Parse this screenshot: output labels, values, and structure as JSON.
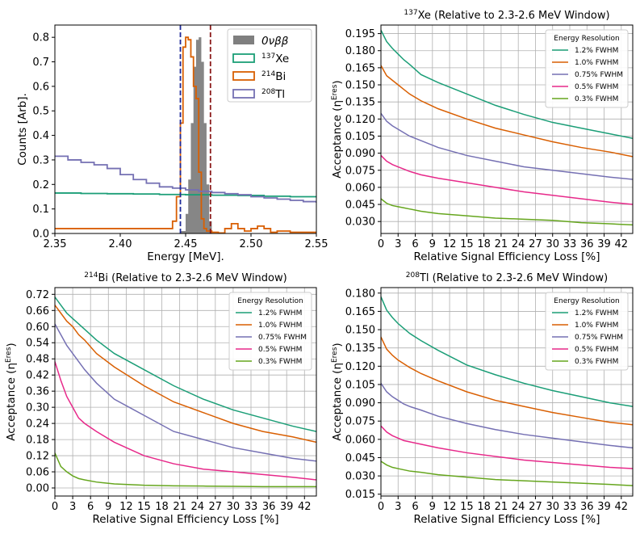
{
  "chart_data": [
    {
      "type": "step",
      "title": "",
      "xlabel": "Energy [MeV].",
      "ylabel": "Counts [Arb].",
      "xlim": [
        2.35,
        2.55
      ],
      "ylim": [
        0,
        0.85
      ],
      "xticks": [
        2.35,
        2.4,
        2.45,
        2.5,
        2.55
      ],
      "xtick_labels": [
        "2.35",
        "2.40",
        "2.45",
        "2.50",
        "2.55"
      ],
      "yticks": [
        0,
        0.1,
        0.2,
        0.3,
        0.4,
        0.5,
        0.6,
        0.7,
        0.8
      ],
      "ytick_labels": [
        "0.0",
        "0.1",
        "0.2",
        "0.3",
        "0.4",
        "0.5",
        "0.6",
        "0.7",
        "0.8"
      ],
      "grid": false,
      "legend_position": "top-right",
      "vlines": [
        {
          "x": 2.446,
          "color": "#1f2a99",
          "style": "dashed"
        },
        {
          "x": 2.469,
          "color": "#8b1a1a",
          "style": "dashed"
        }
      ],
      "series": [
        {
          "name": "0νββ",
          "sup": "",
          "kind": "filled",
          "color": "#7f7f7f",
          "x": [
            2.446,
            2.45,
            2.452,
            2.454,
            2.456,
            2.458,
            2.46,
            2.462,
            2.464,
            2.466,
            2.468,
            2.47
          ],
          "y": [
            0.01,
            0.08,
            0.22,
            0.45,
            0.68,
            0.79,
            0.8,
            0.7,
            0.45,
            0.2,
            0.05,
            0.0
          ]
        },
        {
          "name": "Xe",
          "sup": "137",
          "kind": "line",
          "color": "#1b9e77",
          "x": [
            2.35,
            2.37,
            2.39,
            2.41,
            2.43,
            2.45,
            2.47,
            2.49,
            2.51,
            2.53,
            2.55
          ],
          "y": [
            0.165,
            0.163,
            0.162,
            0.161,
            0.159,
            0.158,
            0.156,
            0.155,
            0.152,
            0.15,
            0.147
          ]
        },
        {
          "name": "Bi",
          "sup": "214",
          "kind": "line",
          "color": "#d95f02",
          "x": [
            2.35,
            2.38,
            2.41,
            2.435,
            2.44,
            2.443,
            2.446,
            2.448,
            2.45,
            2.452,
            2.454,
            2.456,
            2.458,
            2.46,
            2.462,
            2.464,
            2.466,
            2.47,
            2.475,
            2.48,
            2.485,
            2.49,
            2.495,
            2.5,
            2.505,
            2.51,
            2.515,
            2.52,
            2.53,
            2.54,
            2.55
          ],
          "y": [
            0.02,
            0.02,
            0.02,
            0.02,
            0.05,
            0.15,
            0.45,
            0.76,
            0.8,
            0.79,
            0.72,
            0.6,
            0.55,
            0.25,
            0.06,
            0.02,
            0.01,
            0.005,
            0.002,
            0.02,
            0.04,
            0.02,
            0.01,
            0.02,
            0.03,
            0.02,
            0.005,
            0.01,
            0.005,
            0.005,
            0.005
          ]
        },
        {
          "name": "Tl",
          "sup": "208",
          "kind": "line",
          "color": "#7570b3",
          "x": [
            2.35,
            2.36,
            2.37,
            2.38,
            2.39,
            2.4,
            2.41,
            2.42,
            2.43,
            2.44,
            2.45,
            2.46,
            2.47,
            2.48,
            2.49,
            2.5,
            2.51,
            2.52,
            2.53,
            2.54,
            2.55
          ],
          "y": [
            0.315,
            0.3,
            0.29,
            0.28,
            0.265,
            0.24,
            0.22,
            0.205,
            0.19,
            0.185,
            0.178,
            0.172,
            0.167,
            0.162,
            0.158,
            0.15,
            0.145,
            0.14,
            0.135,
            0.13,
            0.125
          ]
        }
      ]
    },
    {
      "type": "line",
      "title": "Xe (Relative to 2.3-2.6 MeV Window)",
      "title_sup": "137",
      "xlabel": "Relative Signal Efficiency Loss [%]",
      "ylabel": "Acceptance (η",
      "ylabel_sup": "Eres",
      "xlim": [
        0,
        44
      ],
      "ylim": [
        0.0195,
        0.2025
      ],
      "xticks": [
        0,
        3,
        6,
        9,
        12,
        15,
        18,
        21,
        24,
        27,
        30,
        33,
        36,
        39,
        42
      ],
      "xtick_labels": [
        "0",
        "3",
        "6",
        "9",
        "12",
        "15",
        "18",
        "21",
        "24",
        "27",
        "30",
        "33",
        "36",
        "39",
        "42"
      ],
      "yticks": [
        0.03,
        0.045,
        0.06,
        0.075,
        0.09,
        0.105,
        0.12,
        0.135,
        0.15,
        0.165,
        0.18,
        0.195
      ],
      "ytick_labels": [
        "0.030",
        "0.045",
        "0.060",
        "0.075",
        "0.090",
        "0.105",
        "0.120",
        "0.135",
        "0.150",
        "0.165",
        "0.180",
        "0.195"
      ],
      "grid": true,
      "legend_position": "top-right",
      "legend_title": "Energy Resolution",
      "x": [
        0,
        1,
        2,
        3,
        4,
        5,
        7,
        10,
        15,
        20,
        25,
        30,
        35,
        40,
        44
      ],
      "series": [
        {
          "name": "1.2% FWHM",
          "color": "#1b9e77",
          "values": [
            0.198,
            0.188,
            0.182,
            0.177,
            0.172,
            0.168,
            0.159,
            0.152,
            0.142,
            0.132,
            0.124,
            0.117,
            0.112,
            0.107,
            0.103
          ]
        },
        {
          "name": "1.0% FWHM",
          "color": "#d95f02",
          "values": [
            0.167,
            0.158,
            0.154,
            0.15,
            0.146,
            0.142,
            0.136,
            0.129,
            0.12,
            0.112,
            0.106,
            0.1,
            0.095,
            0.091,
            0.087
          ]
        },
        {
          "name": "0.75% FWHM",
          "color": "#7570b3",
          "values": [
            0.125,
            0.118,
            0.114,
            0.111,
            0.108,
            0.105,
            0.101,
            0.095,
            0.088,
            0.083,
            0.078,
            0.075,
            0.072,
            0.069,
            0.067
          ]
        },
        {
          "name": "0.5% FWHM",
          "color": "#e7298a",
          "values": [
            0.088,
            0.083,
            0.08,
            0.078,
            0.076,
            0.074,
            0.071,
            0.068,
            0.064,
            0.06,
            0.056,
            0.053,
            0.05,
            0.047,
            0.045
          ]
        },
        {
          "name": "0.3% FWHM",
          "color": "#66a61e",
          "values": [
            0.05,
            0.046,
            0.044,
            0.043,
            0.042,
            0.041,
            0.039,
            0.037,
            0.035,
            0.033,
            0.032,
            0.031,
            0.029,
            0.028,
            0.027
          ]
        }
      ]
    },
    {
      "type": "line",
      "title": "Bi (Relative to 2.3-2.6 MeV Window)",
      "title_sup": "214",
      "xlabel": "Relative Signal Efficiency Loss [%]",
      "ylabel": "Acceptance (η",
      "ylabel_sup": "Eres",
      "xlim": [
        0,
        44
      ],
      "ylim": [
        -0.03,
        0.745
      ],
      "xticks": [
        0,
        3,
        6,
        9,
        12,
        15,
        18,
        21,
        24,
        27,
        30,
        33,
        36,
        39,
        42
      ],
      "xtick_labels": [
        "0",
        "3",
        "6",
        "9",
        "12",
        "15",
        "18",
        "21",
        "24",
        "27",
        "30",
        "33",
        "36",
        "39",
        "42"
      ],
      "yticks": [
        0.0,
        0.06,
        0.12,
        0.18,
        0.24,
        0.3,
        0.36,
        0.42,
        0.48,
        0.54,
        0.6,
        0.66,
        0.72
      ],
      "ytick_labels": [
        "0.00",
        "0.06",
        "0.12",
        "0.18",
        "0.24",
        "0.30",
        "0.36",
        "0.42",
        "0.48",
        "0.54",
        "0.60",
        "0.66",
        "0.72"
      ],
      "grid": true,
      "legend_position": "top-right",
      "legend_title": "Energy Resolution",
      "x": [
        0,
        1,
        2,
        3,
        4,
        5,
        7,
        10,
        15,
        20,
        25,
        30,
        35,
        40,
        44
      ],
      "series": [
        {
          "name": "1.2% FWHM",
          "color": "#1b9e77",
          "values": [
            0.71,
            0.68,
            0.65,
            0.63,
            0.61,
            0.59,
            0.55,
            0.5,
            0.44,
            0.38,
            0.33,
            0.29,
            0.26,
            0.23,
            0.21
          ]
        },
        {
          "name": "1.0% FWHM",
          "color": "#d95f02",
          "values": [
            0.68,
            0.65,
            0.62,
            0.6,
            0.57,
            0.55,
            0.5,
            0.45,
            0.38,
            0.32,
            0.28,
            0.24,
            0.21,
            0.19,
            0.17
          ]
        },
        {
          "name": "0.75% FWHM",
          "color": "#7570b3",
          "values": [
            0.61,
            0.57,
            0.53,
            0.5,
            0.47,
            0.44,
            0.39,
            0.33,
            0.27,
            0.21,
            0.18,
            0.15,
            0.13,
            0.11,
            0.1
          ]
        },
        {
          "name": "0.5% FWHM",
          "color": "#e7298a",
          "values": [
            0.47,
            0.4,
            0.34,
            0.3,
            0.26,
            0.24,
            0.21,
            0.17,
            0.12,
            0.09,
            0.07,
            0.06,
            0.05,
            0.04,
            0.03
          ]
        },
        {
          "name": "0.3% FWHM",
          "color": "#66a61e",
          "values": [
            0.13,
            0.08,
            0.06,
            0.045,
            0.035,
            0.03,
            0.022,
            0.015,
            0.01,
            0.008,
            0.007,
            0.006,
            0.005,
            0.005,
            0.005
          ]
        }
      ]
    },
    {
      "type": "line",
      "title": "Tl (Relative to 2.3-2.6 MeV Window)",
      "title_sup": "208",
      "xlabel": "Relative Signal Efficiency Loss [%]",
      "ylabel": "Acceptance (η",
      "ylabel_sup": "Eres",
      "xlim": [
        0,
        44
      ],
      "ylim": [
        0.0135,
        0.1845
      ],
      "xticks": [
        0,
        3,
        6,
        9,
        12,
        15,
        18,
        21,
        24,
        27,
        30,
        33,
        36,
        39,
        42
      ],
      "xtick_labels": [
        "0",
        "3",
        "6",
        "9",
        "12",
        "15",
        "18",
        "21",
        "24",
        "27",
        "30",
        "33",
        "36",
        "39",
        "42"
      ],
      "yticks": [
        0.015,
        0.03,
        0.045,
        0.06,
        0.075,
        0.09,
        0.105,
        0.12,
        0.135,
        0.15,
        0.165,
        0.18
      ],
      "ytick_labels": [
        "0.015",
        "0.030",
        "0.045",
        "0.060",
        "0.075",
        "0.090",
        "0.105",
        "0.120",
        "0.135",
        "0.150",
        "0.165",
        "0.180"
      ],
      "grid": true,
      "legend_position": "top-right",
      "legend_title": "Energy Resolution",
      "x": [
        0,
        1,
        2,
        3,
        4,
        5,
        7,
        10,
        15,
        20,
        25,
        30,
        35,
        40,
        44
      ],
      "series": [
        {
          "name": "1.2% FWHM",
          "color": "#1b9e77",
          "values": [
            0.177,
            0.166,
            0.16,
            0.155,
            0.151,
            0.147,
            0.141,
            0.133,
            0.121,
            0.113,
            0.106,
            0.1,
            0.095,
            0.09,
            0.087
          ]
        },
        {
          "name": "1.0% FWHM",
          "color": "#d95f02",
          "values": [
            0.144,
            0.134,
            0.129,
            0.125,
            0.122,
            0.119,
            0.114,
            0.108,
            0.099,
            0.092,
            0.087,
            0.082,
            0.078,
            0.074,
            0.072
          ]
        },
        {
          "name": "0.75% FWHM",
          "color": "#7570b3",
          "values": [
            0.106,
            0.099,
            0.095,
            0.092,
            0.089,
            0.087,
            0.084,
            0.079,
            0.073,
            0.068,
            0.064,
            0.061,
            0.058,
            0.055,
            0.053
          ]
        },
        {
          "name": "0.5% FWHM",
          "color": "#e7298a",
          "values": [
            0.071,
            0.066,
            0.063,
            0.061,
            0.059,
            0.058,
            0.056,
            0.053,
            0.049,
            0.046,
            0.043,
            0.041,
            0.039,
            0.037,
            0.036
          ]
        },
        {
          "name": "0.3% FWHM",
          "color": "#66a61e",
          "values": [
            0.042,
            0.039,
            0.037,
            0.036,
            0.035,
            0.034,
            0.033,
            0.031,
            0.029,
            0.027,
            0.026,
            0.025,
            0.024,
            0.023,
            0.022
          ]
        }
      ]
    }
  ]
}
